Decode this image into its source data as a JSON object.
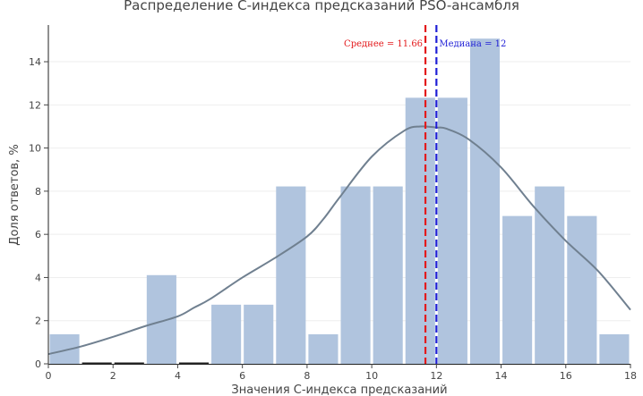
{
  "chart_data": {
    "type": "bar",
    "title": "Распределение C-индекса предсказаний PSO-ансамбля",
    "xlabel": "Значения C-индекса предсказаний",
    "ylabel": "Доля ответов, %",
    "xlim": [
      0,
      18
    ],
    "ylim": [
      0,
      15.7
    ],
    "xticks": [
      0,
      2,
      4,
      6,
      8,
      10,
      12,
      14,
      16,
      18
    ],
    "yticks": [
      0,
      2,
      4,
      6,
      8,
      10,
      12,
      14
    ],
    "grid": true,
    "bins": [
      {
        "x0": 0,
        "x1": 1,
        "value": 1.37
      },
      {
        "x0": 1,
        "x1": 2,
        "value": 0
      },
      {
        "x0": 2,
        "x1": 3,
        "value": 0
      },
      {
        "x0": 3,
        "x1": 4,
        "value": 4.11
      },
      {
        "x0": 4,
        "x1": 5,
        "value": 0
      },
      {
        "x0": 5,
        "x1": 6,
        "value": 2.74
      },
      {
        "x0": 6,
        "x1": 7,
        "value": 2.74
      },
      {
        "x0": 7,
        "x1": 8,
        "value": 8.22
      },
      {
        "x0": 8,
        "x1": 9,
        "value": 1.37
      },
      {
        "x0": 9,
        "x1": 10,
        "value": 8.22
      },
      {
        "x0": 10,
        "x1": 11,
        "value": 8.22
      },
      {
        "x0": 11,
        "x1": 12,
        "value": 12.33
      },
      {
        "x0": 12,
        "x1": 13,
        "value": 12.33
      },
      {
        "x0": 13,
        "x1": 14,
        "value": 15.07
      },
      {
        "x0": 14,
        "x1": 15,
        "value": 6.85
      },
      {
        "x0": 15,
        "x1": 16,
        "value": 8.22
      },
      {
        "x0": 16,
        "x1": 17,
        "value": 6.85
      },
      {
        "x0": 17,
        "x1": 18,
        "value": 1.37
      }
    ],
    "kde": {
      "x": [
        0,
        1,
        2,
        3,
        4,
        4.5,
        5,
        6,
        7,
        8,
        8.5,
        9,
        10,
        11,
        11.5,
        12,
        12.3,
        13,
        14,
        15,
        16,
        17,
        18
      ],
      "y": [
        0.45,
        0.8,
        1.25,
        1.75,
        2.2,
        2.6,
        3.0,
        4.0,
        4.9,
        5.9,
        6.7,
        7.7,
        9.6,
        10.8,
        11.0,
        10.95,
        10.9,
        10.4,
        9.1,
        7.3,
        5.7,
        4.3,
        2.5
      ]
    },
    "mean": {
      "value": 11.66,
      "label": "Среднее = 11.66",
      "color": "#e31a1c"
    },
    "median": {
      "value": 12,
      "label": "Медиана = 12",
      "color": "#1f1fd6"
    },
    "colors": {
      "bar": "#b0c4de",
      "kde": "#708090",
      "grid": "#eeeeee",
      "text": "#444444"
    }
  }
}
